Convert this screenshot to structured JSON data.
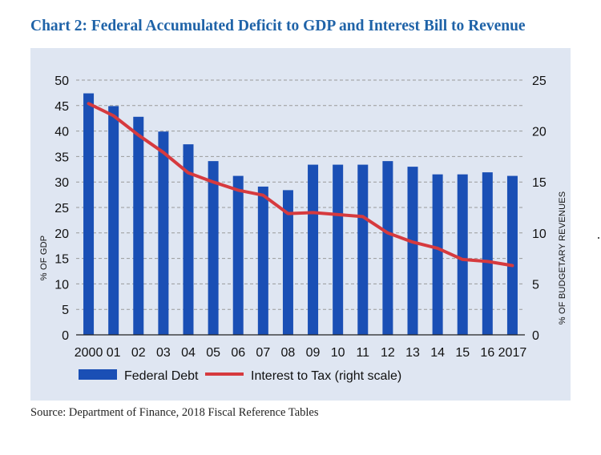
{
  "title": "Chart 2: Federal Accumulated Deficit to GDP and Interest Bill to Revenue",
  "source": "Source: Department of Finance, 2018 Fiscal Reference Tables",
  "colors": {
    "title": "#1f63a8",
    "bar": "#1a4fb5",
    "line": "#d63a3e",
    "panel": "#dfe6f2",
    "grid": "#9a9a9a"
  },
  "chart_data": {
    "type": "bar",
    "categories": [
      "2000",
      "01",
      "02",
      "03",
      "04",
      "05",
      "06",
      "07",
      "08",
      "09",
      "10",
      "11",
      "12",
      "13",
      "14",
      "15",
      "16",
      "2017"
    ],
    "series": [
      {
        "name": "Federal Debt",
        "type": "bar",
        "axis": "left",
        "values": [
          47.4,
          44.9,
          42.8,
          39.9,
          37.4,
          34.1,
          31.2,
          29.1,
          28.4,
          33.4,
          33.4,
          33.4,
          34.1,
          33.0,
          31.5,
          31.5,
          31.9,
          31.2
        ]
      },
      {
        "name": "Interest to Tax (right scale)",
        "type": "line",
        "axis": "right",
        "values": [
          22.7,
          21.5,
          19.6,
          17.9,
          15.9,
          15.0,
          14.2,
          13.7,
          11.9,
          12.0,
          11.8,
          11.6,
          10.0,
          9.1,
          8.5,
          7.4,
          7.2,
          6.8
        ]
      }
    ],
    "ylabel": "% OF GDP",
    "y2label": "% OF BUDGETARY REVENUES",
    "ylim": [
      0,
      50
    ],
    "y2lim": [
      0,
      25
    ],
    "yticks": [
      "0",
      "5",
      "10",
      "15",
      "20",
      "25",
      "30",
      "35",
      "40",
      "45",
      "50"
    ],
    "y2ticks": [
      "0",
      "5",
      "10",
      "15",
      "20",
      "25"
    ],
    "grid": "horizontal dashed",
    "legend_position": "bottom"
  }
}
